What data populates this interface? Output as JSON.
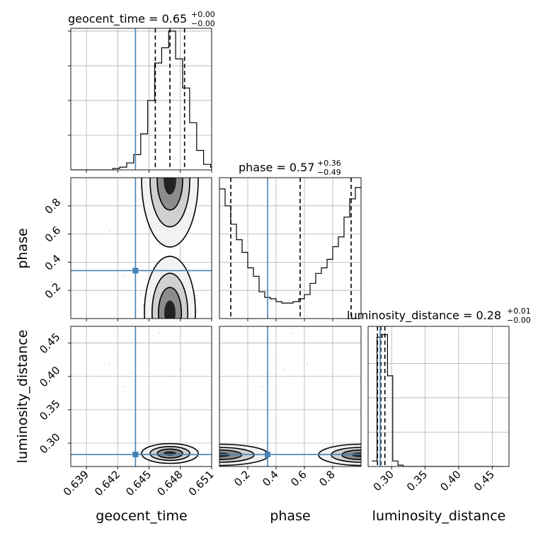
{
  "chart_data": {
    "type": "corner",
    "parameters": [
      "geocent_time",
      "phase",
      "luminosity_distance"
    ],
    "truth_color": "#4682b4",
    "truths": {
      "geocent_time": 0.6437,
      "phase": 0.34,
      "luminosity_distance": 0.283
    },
    "panels": {
      "geocent_time": {
        "title": {
          "prefix": "geocent_time = ",
          "median": "0.65",
          "plus": "+0.00",
          "minus": "−0.00"
        },
        "xlim": [
          0.6375,
          0.651
        ],
        "quantiles": [
          0.6456,
          0.647,
          0.6484
        ],
        "hist": {
          "edges_start": 0.6375,
          "bin_width": 0.00067,
          "counts": [
            0,
            0,
            0,
            0,
            0,
            0,
            0.01,
            0.02,
            0.05,
            0.11,
            0.26,
            0.5,
            0.77,
            0.88,
            1.0,
            0.8,
            0.59,
            0.34,
            0.14,
            0.04,
            0.02
          ]
        },
        "ylim": [
          0,
          1.02
        ],
        "yticks": [
          0.25,
          0.5,
          0.75,
          1.0
        ],
        "xticks": [
          0.639,
          0.642,
          0.645,
          0.648,
          0.651
        ],
        "xtick_labels": [
          "0.639",
          "0.642",
          "0.645",
          "0.648",
          "0.651"
        ]
      },
      "phase": {
        "title": {
          "prefix": "phase = ",
          "median": "0.57",
          "plus": "+0.36",
          "minus": "−0.49"
        },
        "xlim": [
          0.0,
          1.0
        ],
        "quantiles": [
          0.08,
          0.57,
          0.93
        ],
        "hist": {
          "edges_start": 0.0,
          "bin_width": 0.04,
          "counts": [
            0.92,
            0.8,
            0.67,
            0.56,
            0.47,
            0.36,
            0.3,
            0.19,
            0.15,
            0.14,
            0.12,
            0.11,
            0.11,
            0.12,
            0.14,
            0.17,
            0.25,
            0.32,
            0.36,
            0.42,
            0.51,
            0.58,
            0.72,
            0.85,
            0.93
          ]
        },
        "ylim": [
          0,
          1.0
        ],
        "yticks": [
          0.2,
          0.4,
          0.6,
          0.8
        ],
        "ytick_labels": [
          "0.2",
          "0.4",
          "0.6",
          "0.8"
        ],
        "xticks": [
          0.2,
          0.4,
          0.6,
          0.8
        ],
        "xtick_labels": [
          "0.2",
          "0.4",
          "0.6",
          "0.8"
        ],
        "axis_label": "phase"
      },
      "luminosity_distance": {
        "title": {
          "prefix": "luminosity_distance = ",
          "median": "0.28",
          "plus": "+0.01",
          "minus": "−0.00"
        },
        "xlim": [
          0.265,
          0.475
        ],
        "quantiles": [
          0.279,
          0.284,
          0.29
        ],
        "hist": {
          "edges_start": 0.2705,
          "bin_width": 0.0078,
          "counts": [
            0.04,
            0.94,
            0.96,
            0.66,
            0.04,
            0.01,
            0,
            0,
            0,
            0,
            0,
            0,
            0,
            0,
            0,
            0,
            0,
            0,
            0,
            0,
            0,
            0,
            0,
            0,
            0
          ]
        },
        "ylim": [
          0,
          1.02
        ],
        "yticks": [
          0.25,
          0.5,
          0.75
        ],
        "xticks": [
          0.3,
          0.35,
          0.4,
          0.45
        ],
        "xtick_labels": [
          "0.30",
          "0.35",
          "0.40",
          "0.45"
        ],
        "yticks_2d": [
          0.3,
          0.35,
          0.4,
          0.45
        ],
        "ytick_labels_2d": [
          "0.30",
          "0.35",
          "0.40",
          "0.45"
        ],
        "axis_label": "luminosity_distance"
      }
    },
    "axis_labels": {
      "x1": "geocent_time",
      "x2": "phase",
      "x3": "luminosity_distance",
      "y2": "phase",
      "y3": "luminosity_distance"
    },
    "outlier_points": {
      "geocent_time_vs_luminosity_distance": [
        [
          0.6412,
          0.419
        ],
        [
          0.6427,
          0.385
        ]
      ],
      "phase_vs_luminosity_distance": [
        [
          0.52,
          0.465
        ],
        [
          0.46,
          0.41
        ],
        [
          0.54,
          0.4
        ]
      ]
    }
  }
}
